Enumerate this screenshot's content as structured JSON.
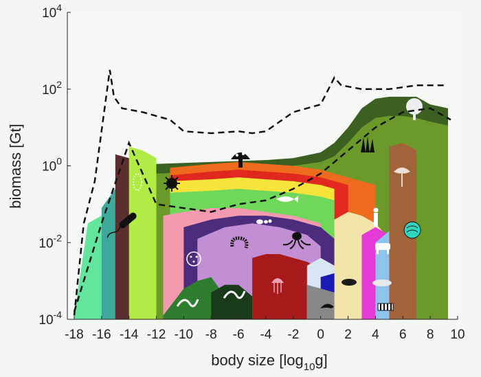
{
  "chart_data": {
    "type": "area",
    "title": "",
    "xlabel": "body size [log",
    "xlabel_sub": "10",
    "xlabel_end": "g]",
    "ylabel": "biomass [Gt]",
    "xlim": [
      -18.5,
      10
    ],
    "ylim_log10": [
      -4,
      4
    ],
    "y_scale": "log",
    "x_ticks": [
      -18,
      -16,
      -14,
      -12,
      -10,
      -8,
      -6,
      -4,
      -2,
      0,
      2,
      4,
      6,
      8,
      10
    ],
    "x_tick_labels": [
      "-18",
      "-16",
      "-14",
      "-12",
      "-10",
      "-8",
      "-6",
      "-4",
      "-2",
      "0",
      "2",
      "4",
      "6",
      "8",
      "10"
    ],
    "y_ticks_log10": [
      -4,
      -2,
      0,
      2,
      4
    ],
    "y_tick_labels": [
      {
        "base": "10",
        "exp": "-4"
      },
      {
        "base": "10",
        "exp": "-2"
      },
      {
        "base": "10",
        "exp": "0"
      },
      {
        "base": "10",
        "exp": "2"
      },
      {
        "base": "10",
        "exp": "4"
      }
    ],
    "grid": false,
    "series": [
      {
        "color": "#3c5f22",
        "x": [
          -12,
          -8,
          -4,
          -2,
          0,
          1,
          2,
          3,
          4,
          5,
          6,
          7,
          8,
          9.3
        ],
        "y_log10": [
          0.05,
          0.1,
          0.15,
          0.2,
          0.35,
          0.6,
          1.0,
          1.5,
          1.75,
          1.8,
          1.8,
          1.8,
          1.6,
          1.5
        ]
      },
      {
        "color": "#6b9a2a",
        "x": [
          -12,
          -8,
          -4,
          -2,
          0,
          1,
          2,
          3,
          4,
          5,
          6,
          7,
          8,
          9.3
        ],
        "y_log10": [
          -0.2,
          -0.15,
          -0.1,
          0.0,
          0.1,
          0.25,
          0.6,
          1.0,
          1.25,
          1.3,
          1.3,
          1.25,
          1.15,
          1.05
        ]
      },
      {
        "color": "#ee6a1d",
        "x": [
          -11,
          -8,
          -6,
          -4,
          -2,
          0,
          1,
          2,
          3,
          4
        ],
        "y_log10": [
          -0.05,
          0.05,
          0.1,
          0.05,
          0.0,
          -0.1,
          -0.2,
          -0.3,
          -0.4,
          -0.5
        ]
      },
      {
        "color": "#e0281f",
        "x": [
          -11,
          -8,
          -6,
          -4,
          -2,
          0,
          1,
          2
        ],
        "y_log10": [
          -0.25,
          -0.15,
          -0.1,
          -0.15,
          -0.2,
          -0.3,
          -0.4,
          -0.5
        ]
      },
      {
        "color": "#f7e43a",
        "x": [
          -11,
          -8,
          -6,
          -4,
          -2,
          0,
          1
        ],
        "y_log10": [
          -0.4,
          -0.35,
          -0.3,
          -0.35,
          -0.4,
          -0.5,
          -0.6
        ]
      },
      {
        "color": "#6fd85a",
        "x": [
          -11,
          -8,
          -6,
          -4,
          -2,
          0,
          1
        ],
        "y_log10": [
          -0.7,
          -0.65,
          -0.6,
          -0.65,
          -0.7,
          -0.8,
          -0.9
        ]
      },
      {
        "color": "#f49ab0",
        "x": [
          -11.5,
          -10,
          -8,
          -6,
          -4,
          -2,
          0
        ],
        "y_log10": [
          -1.3,
          -1.2,
          -1.1,
          -1.1,
          -1.2,
          -1.3,
          -1.5
        ]
      },
      {
        "color": "#4c2c7c",
        "x": [
          -10,
          -8,
          -6,
          -4,
          -2,
          0,
          1
        ],
        "y_log10": [
          -1.6,
          -1.4,
          -1.3,
          -1.3,
          -1.4,
          -1.6,
          -1.9
        ]
      },
      {
        "color": "#c38fd4",
        "x": [
          -9,
          -7,
          -5,
          -3,
          -1,
          0
        ],
        "y_log10": [
          -1.9,
          -1.6,
          -1.5,
          -1.6,
          -1.8,
          -2.1
        ]
      },
      {
        "color": "#2f7d2e",
        "x": [
          -11.5,
          -10,
          -9,
          -8,
          -7
        ],
        "y_log10": [
          -3.9,
          -3.2,
          -3.0,
          -2.9,
          -3.4
        ]
      },
      {
        "color": "#1a3b1a",
        "x": [
          -8,
          -7,
          -6,
          -5
        ],
        "y_log10": [
          -3.3,
          -3.1,
          -3.1,
          -3.4
        ]
      },
      {
        "color": "#a81b1b",
        "x": [
          -5,
          -4,
          -3,
          -2,
          -1,
          0
        ],
        "y_log10": [
          -2.4,
          -2.3,
          -2.3,
          -2.4,
          -2.5,
          -2.7
        ]
      },
      {
        "color": "#d7e6f2",
        "x": [
          -1,
          0,
          1,
          2,
          3
        ],
        "y_log10": [
          -2.6,
          -2.4,
          -2.6,
          -2.9,
          -3.2
        ]
      },
      {
        "color": "#1b1bb8",
        "x": [
          0,
          1,
          2,
          3,
          4
        ],
        "y_log10": [
          -2.9,
          -2.8,
          -3.0,
          -3.2,
          -3.5
        ]
      },
      {
        "color": "#888888",
        "x": [
          -1,
          0,
          1,
          2,
          3
        ],
        "y_log10": [
          -3.1,
          -3.2,
          -3.3,
          -3.5,
          -3.8
        ]
      },
      {
        "color": "#f2e4a8",
        "x": [
          1,
          2,
          3,
          4,
          5
        ],
        "y_log10": [
          -1.4,
          -1.2,
          -1.3,
          -1.5,
          -1.9
        ]
      },
      {
        "color": "#e63ad6",
        "x": [
          3,
          4,
          5,
          6
        ],
        "y_log10": [
          -1.8,
          -1.6,
          -1.8,
          -2.3
        ]
      },
      {
        "color": "#8cc4ec",
        "x": [
          4,
          5,
          6,
          7
        ],
        "y_log10": [
          -2.0,
          -1.7,
          -1.9,
          -2.4
        ]
      },
      {
        "color": "#a0633a",
        "x": [
          5,
          6,
          7
        ],
        "y_log10": [
          0.5,
          0.6,
          0.4
        ]
      },
      {
        "color": "#62e59c",
        "x": [
          -18,
          -17,
          -16,
          -15,
          -14,
          -13
        ],
        "y_log10": [
          -3.9,
          -1.5,
          -1.3,
          -1.2,
          -1.4,
          -2.2
        ]
      },
      {
        "color": "#3ea89a",
        "x": [
          -16,
          -15,
          -14,
          -13
        ],
        "y_log10": [
          -1.1,
          -0.6,
          -0.4,
          -1.5
        ]
      },
      {
        "color": "#5c2f2f",
        "x": [
          -15,
          -14,
          -13,
          -12
        ],
        "y_log10": [
          0.3,
          0.2,
          0.0,
          -0.3
        ]
      },
      {
        "color": "#b0ec45",
        "x": [
          -14,
          -13,
          -12
        ],
        "y_log10": [
          0.5,
          0.4,
          0.2
        ]
      }
    ],
    "bounds_dashed": [
      {
        "name": "",
        "x": [
          -18,
          -17.3,
          -16.5,
          -15.4,
          -15.1,
          -14.5,
          -13,
          -12,
          -11,
          -10,
          -8,
          -6,
          -5,
          -4,
          -2,
          -1,
          0,
          1,
          1.5,
          3,
          5,
          7,
          9
        ],
        "y_log10": [
          -3.9,
          -1.5,
          -0.4,
          2.5,
          1.8,
          1.5,
          1.4,
          1.3,
          1.2,
          0.9,
          0.85,
          0.9,
          0.85,
          0.9,
          1.4,
          1.5,
          1.6,
          2.3,
          2.1,
          2.0,
          2.0,
          2.1,
          2.1
        ]
      },
      {
        "name": "",
        "x": [
          -18,
          -16,
          -14,
          -12,
          -10,
          -8,
          -6,
          -4,
          -2,
          0,
          2,
          4,
          6,
          8,
          9.5
        ],
        "y_log10": [
          -3.8,
          -1.5,
          0.6,
          -1.0,
          -1.1,
          -1.2,
          -1.0,
          -0.9,
          -0.6,
          -0.2,
          0.4,
          1.0,
          1.4,
          1.5,
          1.2
        ]
      }
    ]
  }
}
